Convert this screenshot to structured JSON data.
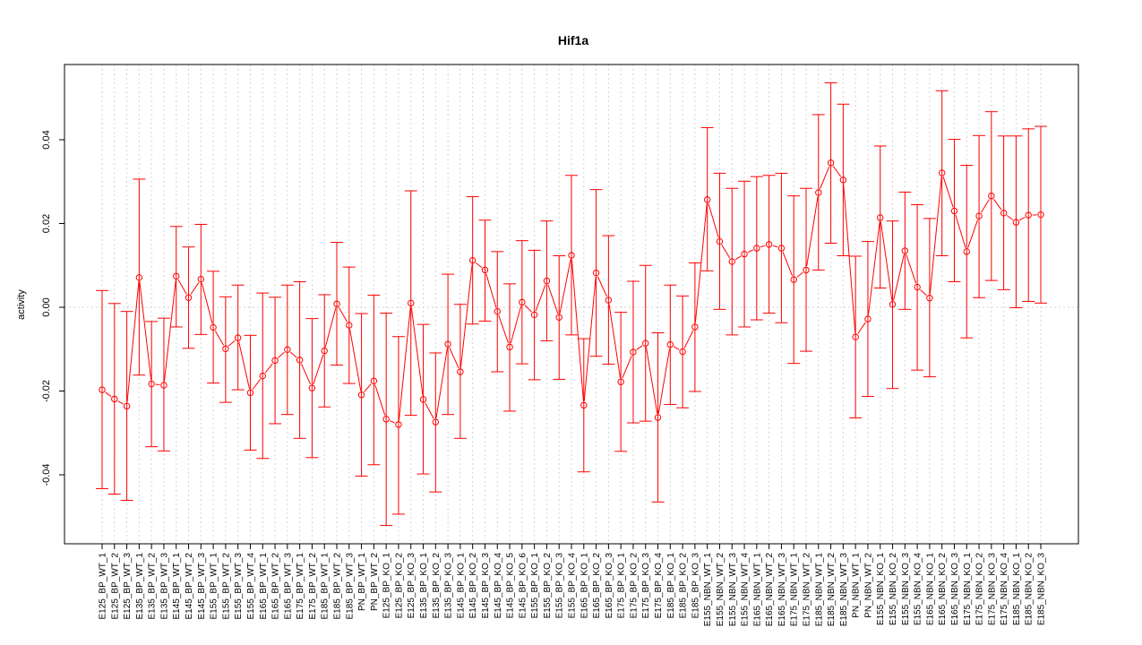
{
  "chart_data": {
    "type": "line",
    "title": "Hif1a",
    "xlabel": "",
    "ylabel": "activity",
    "ylim": [
      -0.056,
      0.058
    ],
    "yticks": [
      -0.04,
      -0.02,
      0.0,
      0.02,
      0.04
    ],
    "ytick_labels": [
      "-0.04",
      "-0.02",
      "0.00",
      "0.02",
      "0.04"
    ],
    "grid": true,
    "legend": "none",
    "colors": {
      "series": "#ff0000",
      "grid": "#d3d3d3",
      "axis": "#000000"
    },
    "categories": [
      "E125_BP_WT_1",
      "E125_BP_WT_2",
      "E125_BP_WT_3",
      "E135_BP_WT_1",
      "E135_BP_WT_2",
      "E135_BP_WT_3",
      "E145_BP_WT_1",
      "E145_BP_WT_2",
      "E145_BP_WT_3",
      "E155_BP_WT_1",
      "E155_BP_WT_2",
      "E155_BP_WT_3",
      "E155_BP_WT_4",
      "E165_BP_WT_1",
      "E165_BP_WT_2",
      "E165_BP_WT_3",
      "E175_BP_WT_1",
      "E175_BP_WT_2",
      "E185_BP_WT_1",
      "E185_BP_WT_2",
      "E185_BP_WT_3",
      "PN_BP_WT_1",
      "PN_BP_WT_2",
      "E125_BP_KO_1",
      "E125_BP_KO_2",
      "E125_BP_KO_3",
      "E135_BP_KO_1",
      "E135_BP_KO_2",
      "E135_BP_KO_3",
      "E145_BP_KO_1",
      "E145_BP_KO_2",
      "E145_BP_KO_3",
      "E145_BP_KO_4",
      "E145_BP_KO_5",
      "E145_BP_KO_6",
      "E155_BP_KO_1",
      "E155_BP_KO_2",
      "E155_BP_KO_3",
      "E155_BP_KO_4",
      "E165_BP_KO_1",
      "E165_BP_KO_2",
      "E165_BP_KO_3",
      "E175_BP_KO_1",
      "E175_BP_KO_2",
      "E175_BP_KO_3",
      "E175_BP_KO_4",
      "E185_BP_KO_1",
      "E185_BP_KO_2",
      "E185_BP_KO_3",
      "E155_NBN_WT_1",
      "E155_NBN_WT_2",
      "E155_NBN_WT_3",
      "E155_NBN_WT_4",
      "E165_NBN_WT_1",
      "E165_NBN_WT_2",
      "E165_NBN_WT_3",
      "E175_NBN_WT_1",
      "E175_NBN_WT_2",
      "E185_NBN_WT_1",
      "E185_NBN_WT_2",
      "E185_NBN_WT_3",
      "PN_NBN_WT_1",
      "PN_NBN_WT_2",
      "E155_NBN_KO_1",
      "E155_NBN_KO_2",
      "E155_NBN_KO_3",
      "E155_NBN_KO_4",
      "E165_NBN_KO_1",
      "E165_NBN_KO_2",
      "E165_NBN_KO_3",
      "E175_NBN_KO_1",
      "E175_NBN_KO_2",
      "E175_NBN_KO_3",
      "E175_NBN_KO_4",
      "E185_NBN_KO_1",
      "E185_NBN_KO_2",
      "E185_NBN_KO_3"
    ],
    "series": [
      {
        "values": [
          -0.0197,
          -0.0219,
          -0.0236,
          0.0071,
          -0.0183,
          -0.0186,
          0.0074,
          0.0023,
          0.0067,
          -0.0048,
          -0.0099,
          -0.0073,
          -0.0204,
          -0.0164,
          -0.0127,
          -0.0101,
          -0.0126,
          -0.0193,
          -0.0104,
          0.0008,
          -0.0043,
          -0.0209,
          -0.0176,
          -0.0267,
          -0.028,
          0.001,
          -0.022,
          -0.0274,
          -0.0088,
          -0.0154,
          0.0112,
          0.0089,
          -0.001,
          -0.0095,
          0.0012,
          -0.0018,
          0.0063,
          -0.0024,
          0.0124,
          -0.0234,
          0.0082,
          0.0017,
          -0.0178,
          -0.0107,
          -0.0086,
          -0.0263,
          -0.0089,
          -0.0106,
          -0.0047,
          0.0257,
          0.0157,
          0.0109,
          0.0127,
          0.0141,
          0.015,
          0.0141,
          0.0066,
          0.0089,
          0.0274,
          0.0345,
          0.0304,
          -0.0071,
          -0.0028,
          0.0214,
          0.0007,
          0.0135,
          0.0048,
          0.0022,
          0.0321,
          0.023,
          0.0133,
          0.0218,
          0.0266,
          0.0225,
          0.0203,
          0.022,
          0.0221
        ],
        "lower": [
          -0.0433,
          -0.0446,
          -0.0461,
          -0.0162,
          -0.0333,
          -0.0343,
          -0.0047,
          -0.0098,
          -0.0065,
          -0.0181,
          -0.0227,
          -0.0197,
          -0.0341,
          -0.0361,
          -0.0278,
          -0.0256,
          -0.0313,
          -0.0359,
          -0.0238,
          -0.0138,
          -0.0182,
          -0.0403,
          -0.0376,
          -0.0521,
          -0.0494,
          -0.0258,
          -0.0398,
          -0.0441,
          -0.0256,
          -0.0313,
          -0.004,
          -0.0033,
          -0.0154,
          -0.0248,
          -0.0135,
          -0.0173,
          -0.008,
          -0.0172,
          -0.0066,
          -0.0393,
          -0.0117,
          -0.0136,
          -0.0344,
          -0.0276,
          -0.0272,
          -0.0465,
          -0.0232,
          -0.024,
          -0.0201,
          0.0087,
          -0.0005,
          -0.0066,
          -0.0047,
          -0.003,
          -0.0014,
          -0.0037,
          -0.0134,
          -0.0105,
          0.0089,
          0.0153,
          0.0123,
          -0.0264,
          -0.0213,
          0.0046,
          -0.0194,
          -0.0005,
          -0.015,
          -0.0166,
          0.0123,
          0.0061,
          -0.0073,
          0.0023,
          0.0064,
          0.0042,
          -0.0001,
          0.0014,
          0.001
        ],
        "upper": [
          0.004,
          0.0009,
          -0.001,
          0.0306,
          -0.0034,
          -0.0026,
          0.0193,
          0.0144,
          0.0198,
          0.0086,
          0.0025,
          0.0053,
          -0.0067,
          0.0034,
          0.0024,
          0.0053,
          0.0061,
          -0.0027,
          0.003,
          0.0155,
          0.0096,
          -0.0015,
          0.0029,
          -0.0014,
          -0.007,
          0.0278,
          -0.0041,
          -0.0109,
          0.0079,
          0.0007,
          0.0264,
          0.0208,
          0.0133,
          0.0056,
          0.0159,
          0.0136,
          0.0206,
          0.0123,
          0.0315,
          -0.0075,
          0.0281,
          0.0171,
          -0.0012,
          0.0062,
          0.01,
          -0.0061,
          0.0053,
          0.0027,
          0.0106,
          0.0429,
          0.032,
          0.0284,
          0.0301,
          0.0312,
          0.0315,
          0.032,
          0.0266,
          0.0284,
          0.046,
          0.0536,
          0.0485,
          0.0122,
          0.0157,
          0.0385,
          0.0206,
          0.0275,
          0.0245,
          0.0212,
          0.0517,
          0.0401,
          0.0339,
          0.041,
          0.0467,
          0.0409,
          0.0409,
          0.0426,
          0.0432
        ]
      }
    ]
  }
}
